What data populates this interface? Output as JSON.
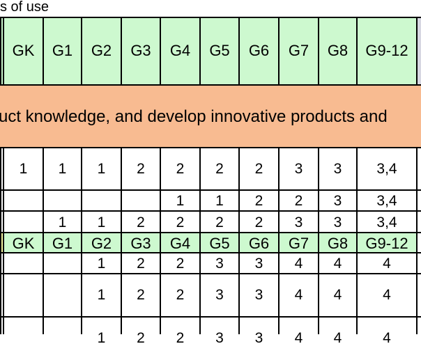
{
  "caption": "s of use",
  "grade_headers": [
    "GK",
    "G1",
    "G2",
    "G3",
    "G4",
    "G5",
    "G6",
    "G7",
    "G8",
    "G9-12"
  ],
  "standard_text": "uct knowledge, and develop innovative products and",
  "rows_a": [
    [
      "1",
      "1",
      "1",
      "2",
      "2",
      "2",
      "2",
      "3",
      "3",
      "3,4"
    ],
    [
      "",
      "",
      "",
      "",
      "1",
      "1",
      "2",
      "2",
      "3",
      "3,4"
    ],
    [
      "",
      "1",
      "1",
      "2",
      "2",
      "2",
      "2",
      "3",
      "3",
      "3,4"
    ]
  ],
  "rows_b": [
    [
      "",
      "",
      "1",
      "2",
      "2",
      "3",
      "3",
      "4",
      "4",
      "4"
    ],
    [
      "",
      "",
      "1",
      "2",
      "2",
      "3",
      "3",
      "4",
      "4",
      "4"
    ],
    [
      "",
      "",
      "1",
      "2",
      "2",
      "3",
      "3",
      "4",
      "4",
      "4"
    ]
  ],
  "colors": {
    "header_green": "#cdf9cf",
    "standard_orange": "#f8bb91",
    "highlight_yellow": "#f7f7a2"
  }
}
